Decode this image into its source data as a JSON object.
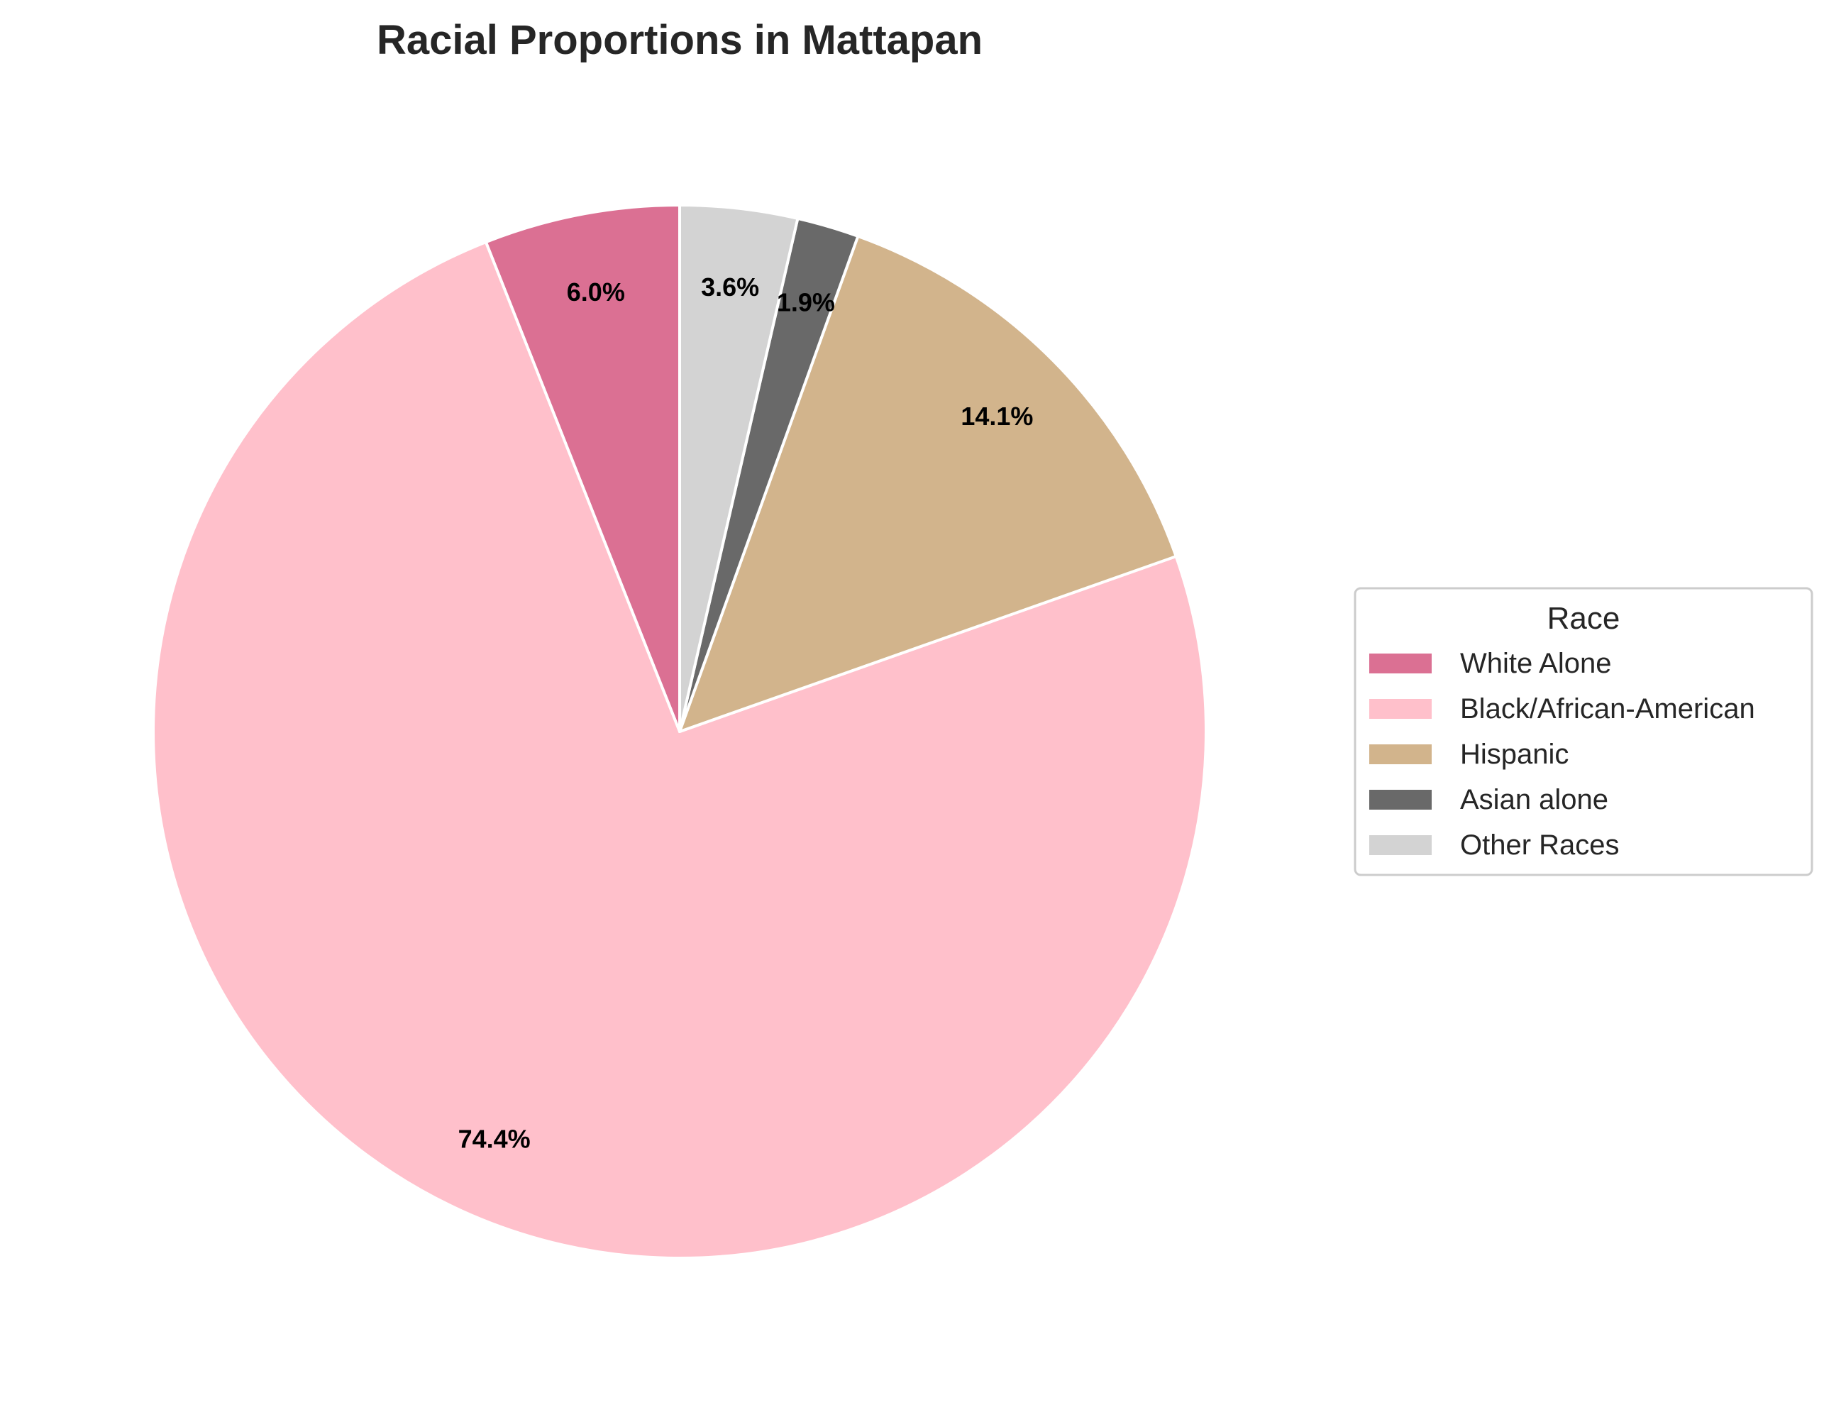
{
  "chart_data": {
    "type": "pie",
    "title": "Racial Proportions in Mattapan",
    "categories": [
      "White Alone",
      "Black/African-American",
      "Hispanic",
      "Asian alone",
      "Other Races"
    ],
    "values": [
      6.0,
      74.4,
      14.1,
      1.9,
      3.6
    ],
    "value_labels": [
      "6.0%",
      "74.4%",
      "14.1%",
      "1.9%",
      "3.6%"
    ],
    "colors": [
      "#DB7093",
      "#FFC0CB",
      "#D2B48C",
      "#696969",
      "#D3D3D3"
    ],
    "start_angle_deg": 90,
    "direction": "counterclockwise",
    "legend": {
      "title": "Race",
      "placement": "right"
    }
  }
}
